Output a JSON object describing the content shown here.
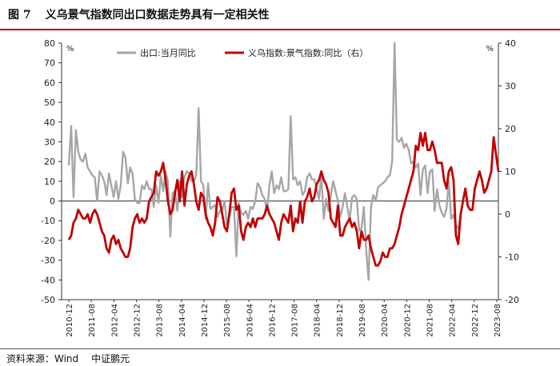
{
  "figure": {
    "number": "图 7",
    "title": "义乌景气指数同出口数据走势具有一定相关性"
  },
  "source": {
    "label": "资料来源：Wind",
    "org": "中证鹏元"
  },
  "chart_data": {
    "type": "line",
    "legend_placement": "top",
    "grid": false,
    "left_axis": {
      "unit": "%",
      "ylim": [
        -50,
        80
      ],
      "ticks": [
        -50,
        -40,
        -30,
        -20,
        -10,
        0,
        10,
        20,
        30,
        40,
        50,
        60,
        70,
        80
      ]
    },
    "right_axis": {
      "unit": "%",
      "ylim": [
        -20,
        40
      ],
      "ticks": [
        -20,
        -10,
        0,
        10,
        20,
        30,
        40
      ]
    },
    "x_ticks": [
      "2010-12",
      "2011-08",
      "2012-04",
      "2012-12",
      "2013-08",
      "2014-04",
      "2014-12",
      "2015-08",
      "2016-04",
      "2016-12",
      "2017-08",
      "2018-04",
      "2018-12",
      "2019-08",
      "2020-04",
      "2020-12",
      "2021-08",
      "2022-04",
      "2022-12",
      "2023-08"
    ],
    "x_start": "2010-12",
    "series": [
      {
        "name": "出口:当月同比",
        "axis": "left",
        "color": "#a6a6a6",
        "values": [
          18,
          38,
          2,
          36,
          25,
          21,
          20,
          24,
          17,
          15,
          13,
          12,
          0,
          15,
          13,
          10,
          3,
          14,
          8,
          2,
          10,
          1,
          8,
          25,
          22,
          9,
          17,
          14,
          1,
          -1,
          -1,
          8,
          6,
          10,
          6,
          6,
          -3,
          8,
          -1,
          13,
          5,
          15,
          10,
          -18,
          4,
          5,
          -5,
          10,
          2,
          12,
          15,
          14,
          10,
          10,
          13,
          47,
          10,
          8,
          -9,
          9,
          -4,
          -3,
          -2,
          -8,
          -5,
          -5,
          0,
          -12,
          -8,
          -3,
          -3,
          -28,
          -1,
          -6,
          -7,
          -5,
          -9,
          -3,
          -4,
          0,
          9,
          7,
          3,
          1,
          -5,
          8,
          15,
          4,
          8,
          6,
          12,
          5,
          5,
          6,
          43,
          11,
          12,
          8,
          10,
          3,
          5,
          12,
          14,
          11,
          11,
          6,
          1,
          13,
          -9,
          1,
          -5,
          3,
          10,
          5,
          0,
          -8,
          -3,
          4,
          -3,
          -10,
          2,
          3,
          1,
          -15,
          -14,
          -3,
          -25,
          -40,
          -3,
          3,
          0,
          7,
          8,
          9,
          10,
          12,
          13,
          20,
          80,
          31,
          30,
          32,
          27,
          29,
          26,
          19,
          20,
          17,
          19,
          3,
          16,
          18,
          4,
          15,
          16,
          -5,
          6,
          -2,
          -6,
          -8,
          -4,
          10,
          -9,
          -7,
          -12,
          -14,
          -8
        ],
        "peaks_clipped_at": 80
      },
      {
        "name": "义乌指数:景气指数:同比（右）",
        "axis": "right",
        "color": "#c00000",
        "values": [
          -6,
          -5,
          -2,
          -1,
          1,
          0,
          -1,
          -1,
          0,
          -2,
          0,
          1,
          0,
          -2,
          -4,
          -5,
          -8,
          -9,
          -6,
          -5,
          -7,
          -6,
          -8,
          -9,
          -10,
          -10,
          -8,
          -3,
          -1,
          0,
          -2,
          -1,
          -2,
          -1,
          3,
          4,
          5,
          10,
          9,
          10,
          12,
          8,
          3,
          0,
          1,
          5,
          8,
          3,
          10,
          2,
          7,
          9,
          10,
          7,
          3,
          1,
          5,
          4,
          0,
          -2,
          -3,
          -5,
          -2,
          4,
          3,
          0,
          -3,
          -4,
          0,
          5,
          6,
          1,
          2,
          -4,
          -6,
          -3,
          -2,
          -3,
          -1,
          -3,
          -1,
          -1,
          -1,
          0,
          2,
          0,
          -1,
          -2,
          -4,
          -6,
          -2,
          0,
          -1,
          -2,
          2,
          -4,
          -1,
          -2,
          3,
          -2,
          3,
          4,
          6,
          3,
          4,
          7,
          8,
          10,
          8,
          7,
          5,
          -1,
          -2,
          -3,
          2,
          -5,
          -5,
          -3,
          -2,
          -1,
          -3,
          -2,
          -4,
          -8,
          -4,
          -6,
          -6,
          -5,
          -8,
          -10,
          -12,
          -12,
          -11,
          -9,
          -10,
          -10,
          -8,
          -8,
          -7,
          -5,
          -3,
          0,
          2,
          4,
          6,
          8,
          10,
          16,
          15,
          19,
          16,
          19,
          15,
          15,
          17,
          15,
          12,
          12,
          12,
          8,
          6,
          10,
          11,
          8,
          -5,
          -7,
          0,
          3,
          6,
          2,
          1,
          1,
          6,
          8,
          10,
          8,
          5,
          6,
          8,
          10,
          18,
          14,
          10
        ]
      }
    ]
  }
}
